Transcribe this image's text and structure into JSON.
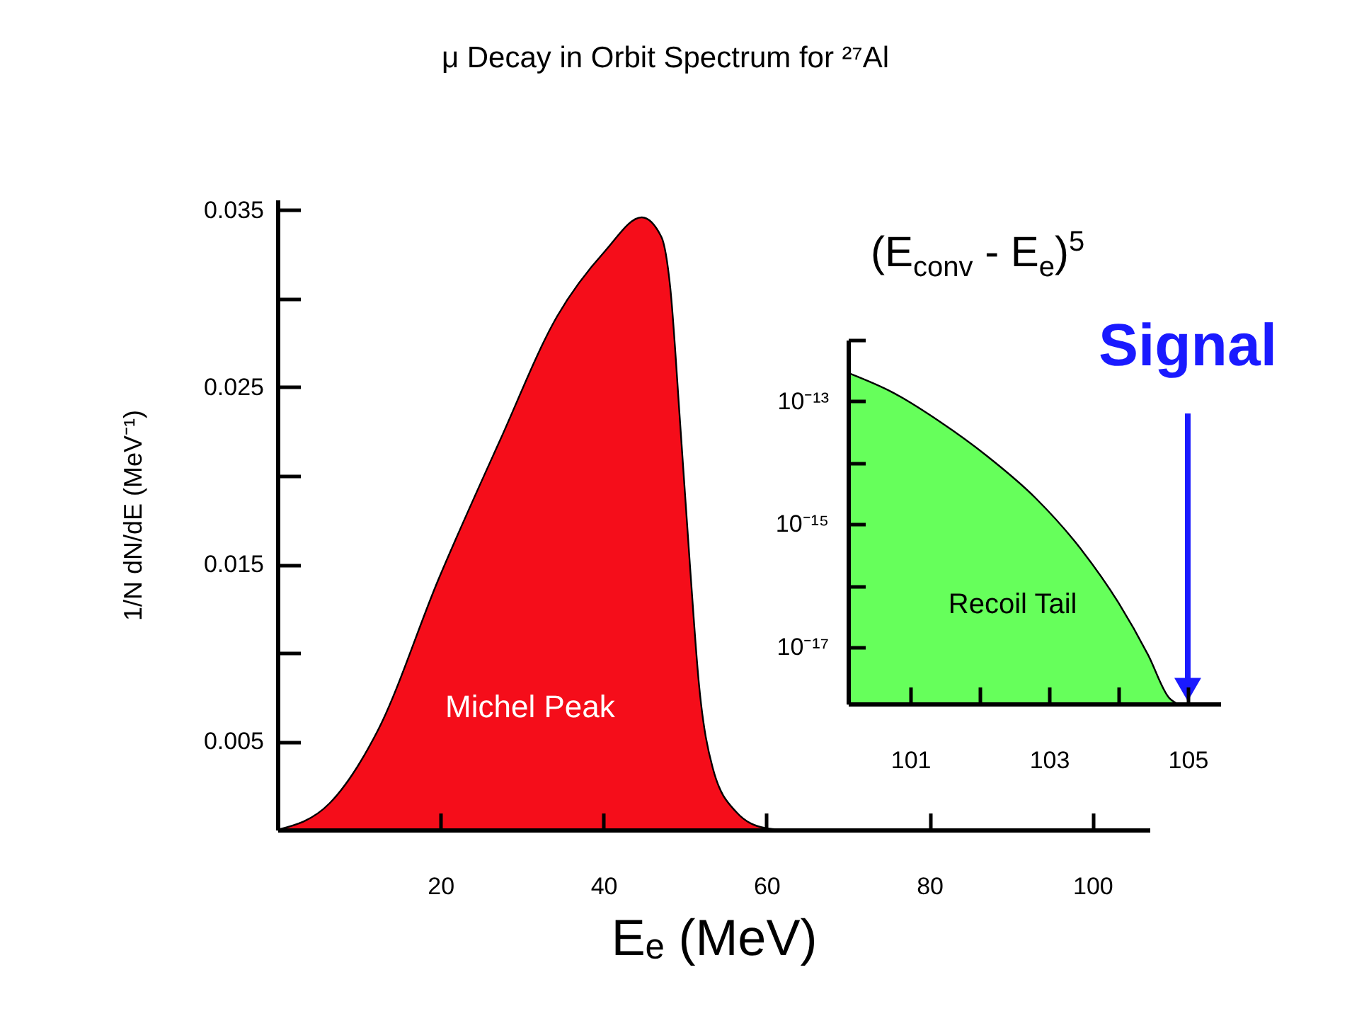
{
  "chart_data": [
    {
      "type": "area",
      "title": "μ Decay in Orbit Spectrum for ²⁷Al",
      "xlabel": "Eₑ (MeV)",
      "ylabel": "1/N dN/dE (MeV⁻¹)",
      "x": [
        0,
        6.4,
        12.3,
        19.8,
        27.3,
        34.3,
        40.2,
        44.7,
        47.1,
        48.2,
        49.4,
        50.6,
        51.7,
        53.4,
        56.3,
        59.8,
        62
      ],
      "series": [
        {
          "name": "Michel Peak",
          "color": "#f50d1a",
          "values": [
            0,
            0.0015,
            0.0056,
            0.0142,
            0.022,
            0.029,
            0.0327,
            0.0346,
            0.0335,
            0.0306,
            0.023,
            0.015,
            0.0083,
            0.0035,
            0.001,
            0.0001,
            0
          ]
        }
      ],
      "xlim": [
        0,
        107
      ],
      "ylim": [
        0,
        0.0356
      ],
      "xticks": [
        20,
        40,
        60,
        80,
        100
      ],
      "yticks": [
        0.005,
        {
          "value": 0.01,
          "label": null
        },
        0.015,
        {
          "value": 0.02,
          "label": null
        },
        0.025,
        {
          "value": 0.03,
          "label": null
        },
        0.035
      ]
    },
    {
      "type": "area",
      "log": "y",
      "x": [
        100.1,
        100.74,
        101.42,
        102.1,
        102.8,
        103.47,
        104.0,
        104.43,
        104.73,
        104.85
      ],
      "series": [
        {
          "name": "Recoil Tail",
          "color": "#66ff5b",
          "values": [
            2.9e-13,
            1.4e-13,
            4.7e-14,
            1.3e-14,
            2.7e-15,
            3.8e-16,
            5.3e-17,
            7.4e-18,
            1.5e-18,
            1.2e-18
          ]
        }
      ],
      "xlim": [
        100.1,
        105.47
      ],
      "ylim": [
        1.2e-18,
        1e-12
      ],
      "xticks": [
        101,
        {
          "value": 102,
          "label": null
        },
        103,
        {
          "value": 104,
          "label": null
        },
        105
      ],
      "yticks": [
        {
          "value": 1e-12,
          "label": null
        },
        {
          "value": 1e-13,
          "label": "10⁻¹³"
        },
        {
          "value": 1e-14,
          "label": null
        },
        {
          "value": 1e-15,
          "label": "10⁻¹⁵"
        },
        {
          "value": 1e-16,
          "label": null
        },
        {
          "value": 1e-17,
          "label": "10⁻¹⁷"
        }
      ],
      "annotations": [
        "(E$_{conv}$ - E$_{e}$)$^{5}$"
      ],
      "ref_lines": [
        {
          "axis": "x",
          "value": 105,
          "label": "Signal",
          "color": "#1a1aff"
        }
      ]
    }
  ]
}
